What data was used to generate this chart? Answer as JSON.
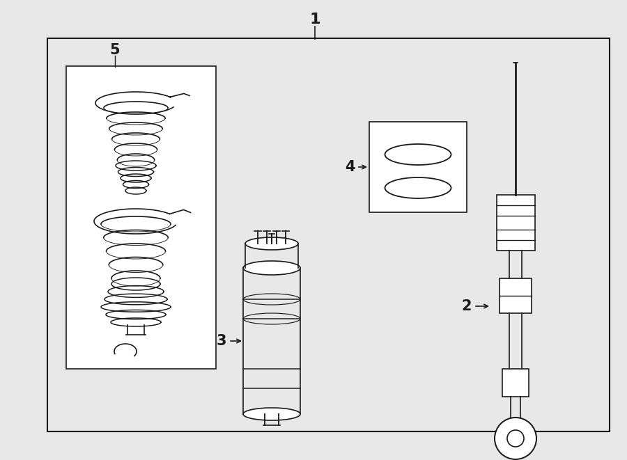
{
  "bg_color": "#e8e8e8",
  "box_color": "#ffffff",
  "line_color": "#1a1a1a",
  "title": "1",
  "label_2": "2",
  "label_3": "3",
  "label_4": "4",
  "label_5": "5"
}
